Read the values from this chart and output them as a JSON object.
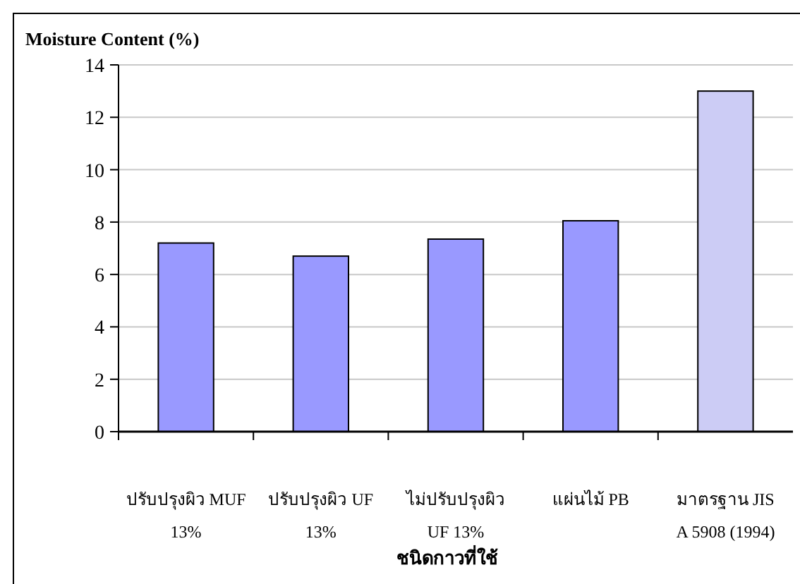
{
  "chart_data": {
    "type": "bar",
    "title": "Moisture Content (%)",
    "xlabel": "ชนิดกาวที่ใช้",
    "categories": [
      "ปรับปรุงผิว MUF\n13%",
      "ปรับปรุงผิว UF\n13%",
      "ไม่ปรับปรุงผิว\nUF 13%",
      "แผ่นไม้ PB",
      "มาตรฐาน JIS\nA 5908 (1994)"
    ],
    "values": [
      7.2,
      6.7,
      7.35,
      8.05,
      13.0
    ],
    "colors": [
      "#9999ff",
      "#9999ff",
      "#9999ff",
      "#9999ff",
      "#ccccf5"
    ],
    "ylim": [
      0,
      14
    ],
    "yticks": [
      0,
      2,
      4,
      6,
      8,
      10,
      12,
      14
    ],
    "grid": "y"
  }
}
